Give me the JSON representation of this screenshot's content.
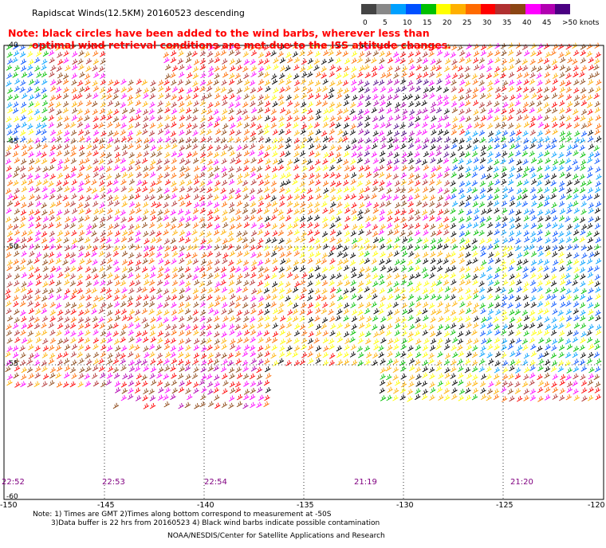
{
  "title": "Rapidscat Winds(12.5KM) 20160523 descending",
  "note": {
    "line1": "Note: black circles have been added to the wind barbs, wherever less than",
    "line2": "optimal wind retrieval conditions are met due to the ISS attitude changes."
  },
  "colorbar": {
    "labels": [
      "0",
      "5",
      "10",
      "15",
      "20",
      "25",
      "30",
      "35",
      "40",
      "45",
      ">50 knots"
    ],
    "colors": [
      "#444444",
      "#888888",
      "#00a0ff",
      "#0050ff",
      "#00c000",
      "#ffff00",
      "#ffb000",
      "#ff6a00",
      "#ff0000",
      "#b03030",
      "#8b4513",
      "#ff00ff",
      "#b000b0",
      "#4b0082"
    ]
  },
  "map": {
    "lon_labels": [
      "-150",
      "-145",
      "-140",
      "-135",
      "-130",
      "-125",
      "-120"
    ],
    "lat_labels": [
      "-40",
      "-45",
      "-50",
      "-55",
      "-60"
    ],
    "lon_range": [
      -150,
      -120
    ],
    "lat_range": [
      -40,
      -60
    ]
  },
  "time_labels": [
    "22:52",
    "22:53",
    "22:54",
    "21:19",
    "21:20"
  ],
  "footer": {
    "line1": "Note: 1) Times are GMT 2)Times along bottom correspond to measurement at -50S",
    "line2": "3)Data buffer is 22 hrs from 20160523 4) Black wind barbs indicate possible contamination",
    "line3": "NOAA/NESDIS/Center for Satellite Applications and Research"
  }
}
